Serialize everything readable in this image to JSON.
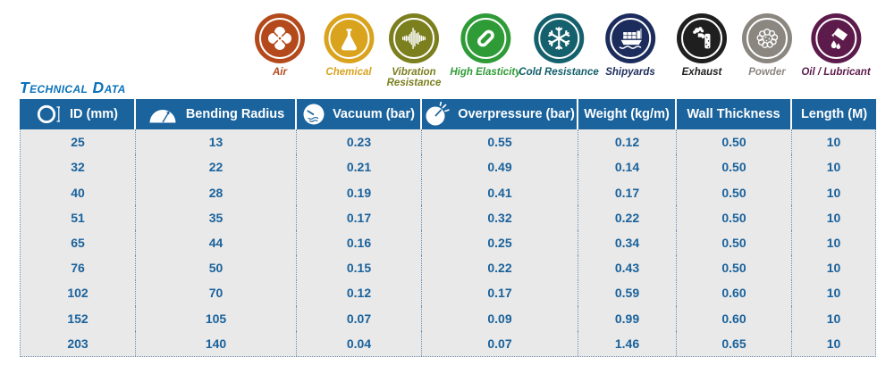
{
  "page": {
    "title": "Technical Data"
  },
  "applications": [
    {
      "label": "Air",
      "color": "#b44a1c",
      "icon": "fan-icon"
    },
    {
      "label": "Chemical",
      "color": "#daa31e",
      "icon": "flask-icon"
    },
    {
      "label": "Vibration Resistance",
      "color": "#7b7f1e",
      "icon": "waveform-icon"
    },
    {
      "label": "High Elasticity",
      "color": "#2f9b37",
      "icon": "bent-tube-icon"
    },
    {
      "label": "Cold Resistance",
      "color": "#14606c",
      "icon": "snowflake-icon"
    },
    {
      "label": "Shipyards",
      "color": "#1c2d5d",
      "icon": "container-ship-icon"
    },
    {
      "label": "Exhaust",
      "color": "#1f1f1f",
      "icon": "exhaust-pipe-icon"
    },
    {
      "label": "Powder",
      "color": "#8b8680",
      "icon": "powder-cloud-icon"
    },
    {
      "label": "Oil / Lubricant",
      "color": "#5d1b4c",
      "icon": "oil-can-icon"
    }
  ],
  "table": {
    "headers": [
      {
        "label": "ID (mm)",
        "icon": "inner-diameter-icon"
      },
      {
        "label": "Bending Radius",
        "icon": "bending-radius-icon"
      },
      {
        "label": "Vacuum (bar)",
        "icon": "vacuum-gauge-icon"
      },
      {
        "label": "Overpressure (bar)",
        "icon": "overpressure-gauge-icon"
      },
      {
        "label": "Weight (kg/m)"
      },
      {
        "label": "Wall Thickness"
      },
      {
        "label": "Length (M)"
      }
    ],
    "rows": [
      [
        "25",
        "13",
        "0.23",
        "0.55",
        "0.12",
        "0.50",
        "10"
      ],
      [
        "32",
        "22",
        "0.21",
        "0.49",
        "0.14",
        "0.50",
        "10"
      ],
      [
        "40",
        "28",
        "0.19",
        "0.41",
        "0.17",
        "0.50",
        "10"
      ],
      [
        "51",
        "35",
        "0.17",
        "0.32",
        "0.22",
        "0.50",
        "10"
      ],
      [
        "65",
        "44",
        "0.16",
        "0.25",
        "0.34",
        "0.50",
        "10"
      ],
      [
        "76",
        "50",
        "0.15",
        "0.22",
        "0.43",
        "0.50",
        "10"
      ],
      [
        "102",
        "70",
        "0.12",
        "0.17",
        "0.59",
        "0.60",
        "10"
      ],
      [
        "152",
        "105",
        "0.07",
        "0.09",
        "0.99",
        "0.60",
        "10"
      ],
      [
        "203",
        "140",
        "0.04",
        "0.07",
        "1.46",
        "0.65",
        "10"
      ]
    ]
  },
  "colors": {
    "header_blue": "#1a639d",
    "cell_text_blue": "#1a629c",
    "title_blue": "#0a72ba",
    "row_bg": "#e9e9e9",
    "dotted_border": "#6b90b4"
  }
}
